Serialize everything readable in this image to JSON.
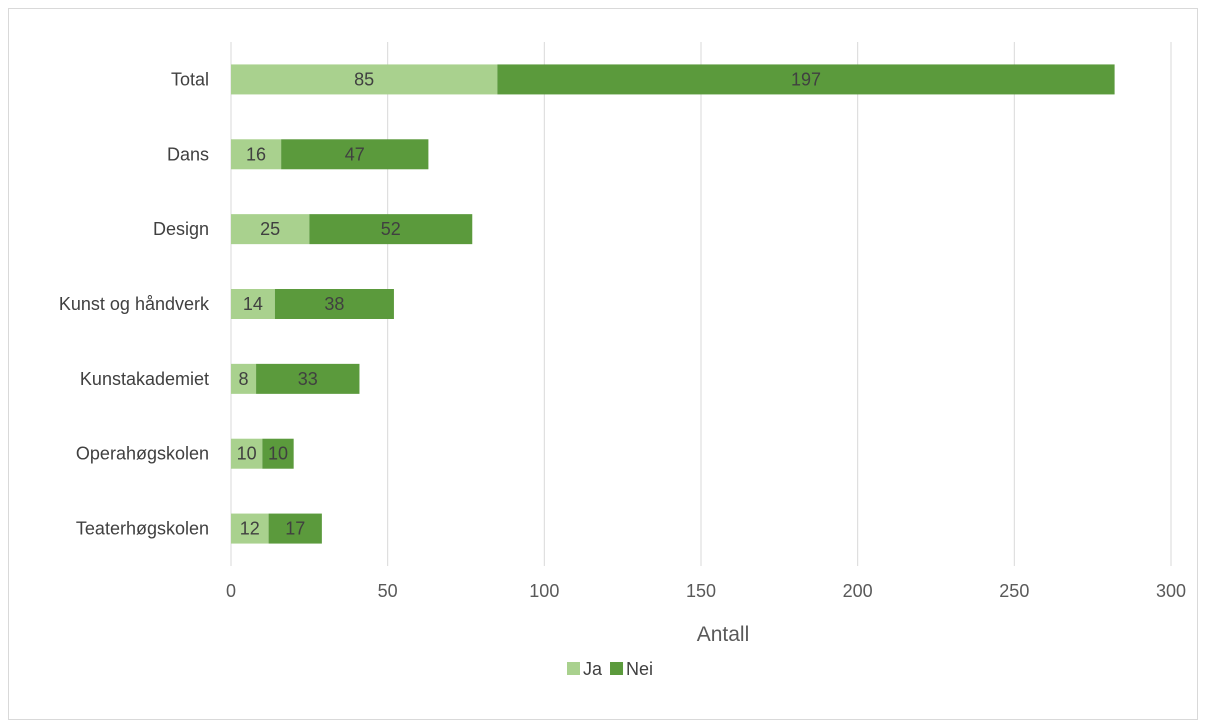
{
  "chart_data": {
    "type": "bar",
    "orientation": "horizontal",
    "stacked": true,
    "categories": [
      "Total",
      "Dans",
      "Design",
      "Kunst og håndverk",
      "Kunstakademiet",
      "Operahøgskolen",
      "Teaterhøgskolen"
    ],
    "series": [
      {
        "name": "Ja",
        "color": "#a9d18e",
        "values": [
          85,
          16,
          25,
          14,
          8,
          10,
          12
        ]
      },
      {
        "name": "Nei",
        "color": "#5b9a3c",
        "values": [
          197,
          47,
          52,
          38,
          33,
          10,
          17
        ]
      }
    ],
    "title": "",
    "xlabel": "Antall",
    "ylabel": "",
    "xlim": [
      0,
      300
    ],
    "xticks": [
      0,
      50,
      100,
      150,
      200,
      250,
      300
    ],
    "grid": true,
    "legend": "bottom",
    "data_labels": true
  }
}
